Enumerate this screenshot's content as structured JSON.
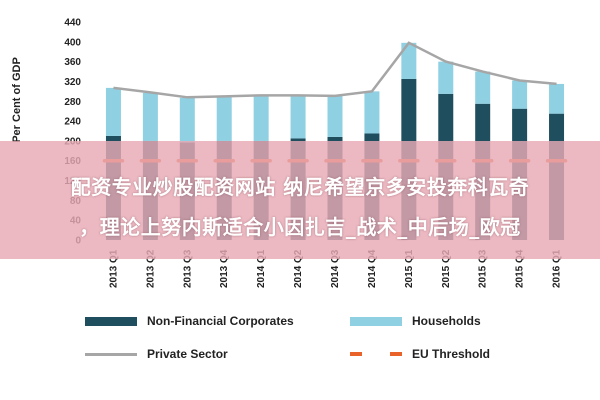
{
  "chart_data": {
    "type": "bar",
    "title": "",
    "xlabel": "",
    "ylabel": "Per Cent of GDP",
    "ylim": [
      0,
      440
    ],
    "yticks": [
      0,
      40,
      80,
      120,
      160,
      200,
      240,
      280,
      320,
      360,
      400,
      440
    ],
    "categories": [
      "2013 Q1",
      "2013 Q2",
      "2013 Q3",
      "2013 Q4",
      "2014 Q1",
      "2014 Q2",
      "2014 Q3",
      "2014 Q4",
      "2015 Q1",
      "2015 Q2",
      "2015 Q3",
      "2015 Q4",
      "2016 Q1"
    ],
    "series": [
      {
        "name": "Non-Financial Corporates",
        "kind": "stacked-bar",
        "color": "#1f4e5f",
        "values": [
          210,
          200,
          197,
          200,
          200,
          205,
          208,
          215,
          325,
          295,
          275,
          265,
          255
        ]
      },
      {
        "name": "Households",
        "kind": "stacked-bar",
        "color": "#8fd0e2",
        "values": [
          97,
          97,
          90,
          90,
          92,
          87,
          83,
          85,
          73,
          65,
          65,
          57,
          60
        ]
      },
      {
        "name": "Private Sector",
        "kind": "line",
        "color": "#a6a6a6",
        "values": [
          307,
          298,
          288,
          290,
          292,
          292,
          291,
          300,
          398,
          360,
          340,
          322,
          315
        ]
      },
      {
        "name": "EU Threshold",
        "kind": "dashed-line",
        "color": "#e8622a",
        "values": [
          160,
          160,
          160,
          160,
          160,
          160,
          160,
          160,
          160,
          160,
          160,
          160,
          160
        ]
      }
    ],
    "grid": false,
    "legend_position": "bottom"
  },
  "watermark": {
    "line1": "配资专业炒股配资网站 纳尼希望京多安投奔科瓦奇",
    "line2": "，理论上努内斯适合小因扎吉_战术_中后场_欧冠"
  }
}
